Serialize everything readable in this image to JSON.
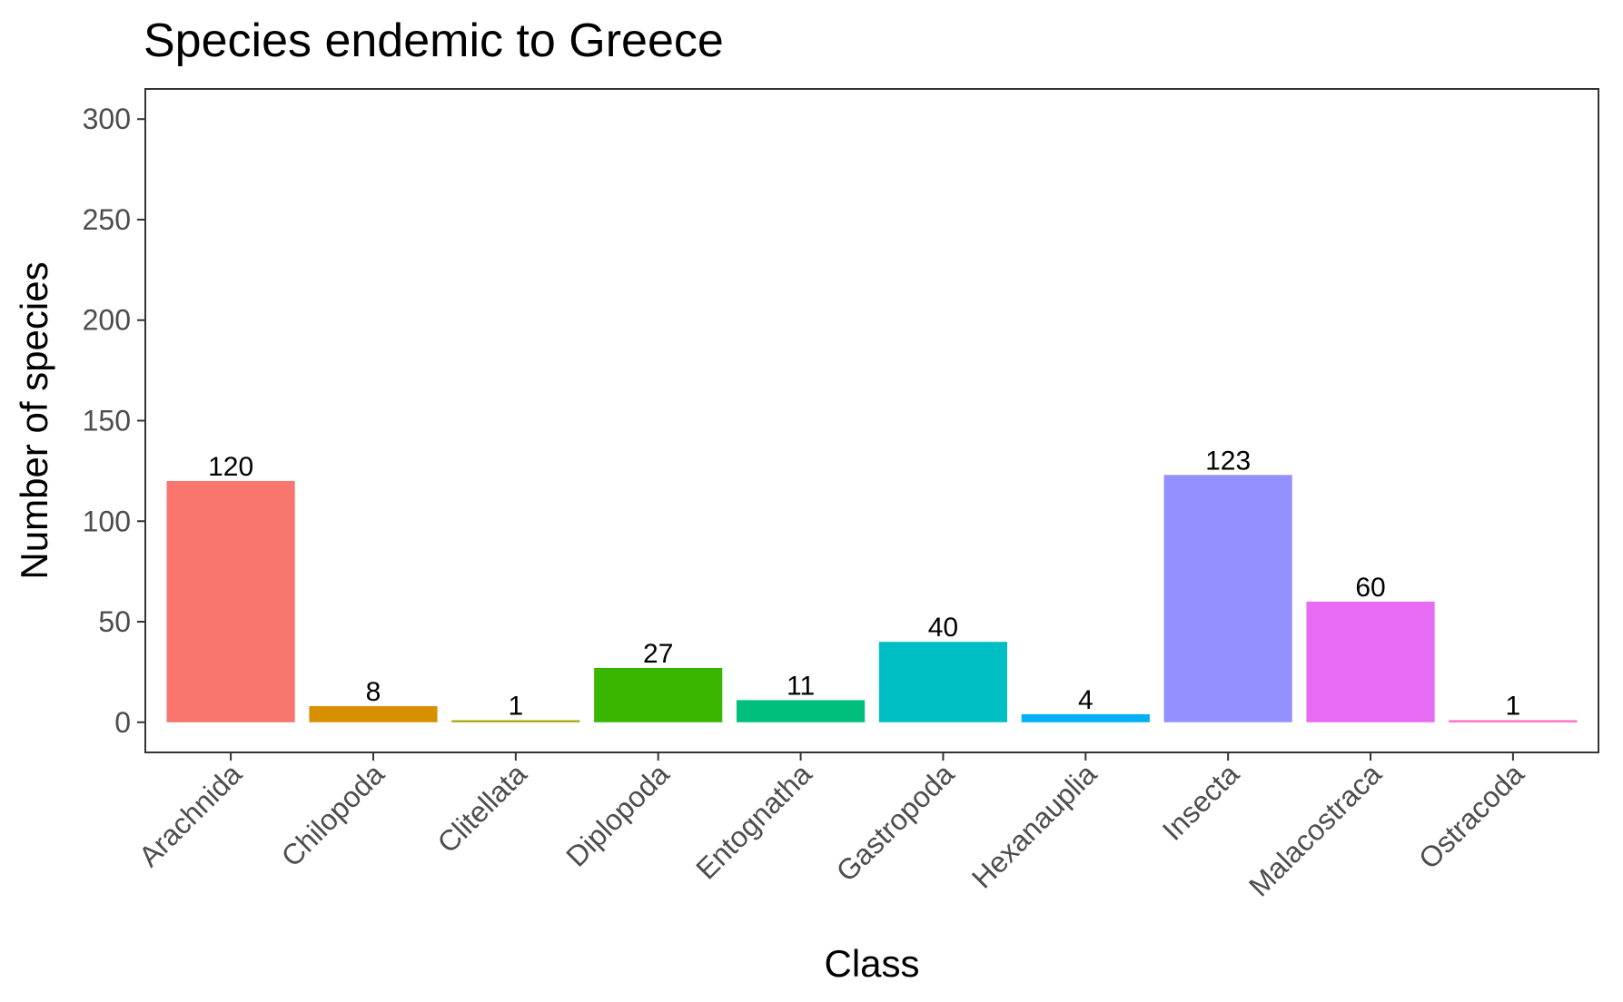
{
  "chart_data": {
    "type": "bar",
    "title": "Species endemic to Greece",
    "xlabel": "Class",
    "ylabel": "Number of species",
    "categories": [
      "Arachnida",
      "Chilopoda",
      "Clitellata",
      "Diplopoda",
      "Entognatha",
      "Gastropoda",
      "Hexanauplia",
      "Insecta",
      "Malacostraca",
      "Ostracoda"
    ],
    "values": [
      120,
      8,
      1,
      27,
      11,
      40,
      4,
      123,
      60,
      1
    ],
    "data_labels": [
      "120",
      "8",
      "1",
      "27",
      "11",
      "40",
      "4",
      "123",
      "60",
      "1"
    ],
    "colors": [
      "#F8766D",
      "#D89000",
      "#A3A500",
      "#39B600",
      "#00BF7D",
      "#00BFC4",
      "#00B0F6",
      "#9590FF",
      "#E76BF3",
      "#FF62BC"
    ],
    "yticks": [
      0,
      50,
      100,
      150,
      200,
      250,
      300
    ],
    "ytick_labels": [
      "0",
      "50",
      "100",
      "150",
      "200",
      "250",
      "300"
    ],
    "ylim": [
      -15,
      315
    ],
    "grid": false,
    "legend": "none"
  }
}
